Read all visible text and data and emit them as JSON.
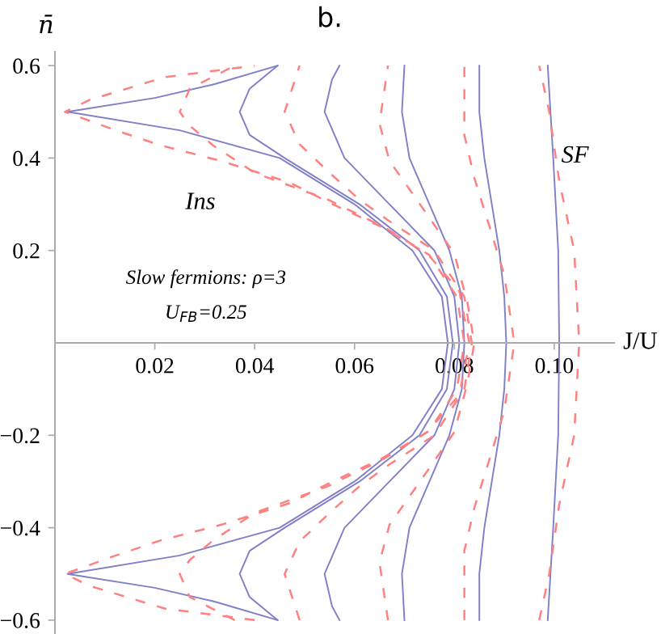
{
  "chart_data": {
    "type": "line",
    "title": "b.",
    "xlabel": "J/U",
    "ylabel": "n̄",
    "xlim": [
      0,
      0.112
    ],
    "ylim": [
      -0.63,
      0.63
    ],
    "xticks": [
      0.02,
      0.04,
      0.06,
      0.08,
      {
        "value": 0.1,
        "label": "0.10"
      }
    ],
    "yticks": [
      {
        "value": -0.6,
        "label": "−0.6"
      },
      {
        "value": -0.4,
        "label": "−0.4"
      },
      {
        "value": -0.2,
        "label": "−0.2"
      },
      0.2,
      0.4,
      0.6
    ],
    "grid": false,
    "legend": false,
    "marker": "none",
    "annotations": [
      "Ins",
      "SF",
      "Slow fermions: ρ=3",
      "U$_{FB}$=0.25"
    ],
    "series": [
      {
        "color": "#8080c8",
        "line_style": "solid",
        "x": [
          0.0446,
          0.032,
          0.02,
          0.0025,
          0.025,
          0.045,
          0.06,
          0.0716,
          0.0775,
          0.0787,
          0.0775,
          0.0716,
          0.06,
          0.045,
          0.025,
          0.0025,
          0.02,
          0.032,
          0.0446
        ],
        "values": [
          -0.6,
          -0.56,
          -0.53,
          -0.5,
          -0.46,
          -0.4,
          -0.3,
          -0.2,
          -0.1,
          0,
          0.1,
          0.2,
          0.3,
          0.4,
          0.46,
          0.5,
          0.53,
          0.56,
          0.6
        ]
      },
      {
        "color": "#8080c8",
        "line_style": "solid",
        "x": [
          0.0446,
          0.039,
          0.037,
          0.039,
          0.046,
          0.061,
          0.073,
          0.0785,
          0.0797,
          0.0785,
          0.073,
          0.061,
          0.046,
          0.039,
          0.037,
          0.039,
          0.0446
        ],
        "values": [
          -0.6,
          -0.55,
          -0.5,
          -0.45,
          -0.4,
          -0.3,
          -0.2,
          -0.1,
          0,
          0.1,
          0.2,
          0.3,
          0.4,
          0.45,
          0.5,
          0.55,
          0.6
        ]
      },
      {
        "color": "#8080c8",
        "line_style": "solid",
        "x": [
          0.057,
          0.0555,
          0.054,
          0.058,
          0.067,
          0.076,
          0.08,
          0.081,
          0.08,
          0.076,
          0.067,
          0.058,
          0.054,
          0.0555,
          0.057
        ],
        "values": [
          -0.6,
          -0.57,
          -0.5,
          -0.4,
          -0.3,
          -0.2,
          -0.1,
          0,
          0.1,
          0.2,
          0.3,
          0.4,
          0.5,
          0.57,
          0.6
        ]
      },
      {
        "color": "#8080c8",
        "line_style": "solid",
        "x": [
          0.07,
          0.0695,
          0.071,
          0.075,
          0.079,
          0.0815,
          0.082,
          0.0815,
          0.079,
          0.075,
          0.071,
          0.0695,
          0.07
        ],
        "values": [
          -0.6,
          -0.5,
          -0.4,
          -0.3,
          -0.2,
          -0.1,
          0,
          0.1,
          0.2,
          0.3,
          0.4,
          0.5,
          0.6
        ]
      },
      {
        "color": "#8080c8",
        "line_style": "solid",
        "x": [
          0.085,
          0.085,
          0.086,
          0.0875,
          0.089,
          0.09,
          0.0904,
          0.09,
          0.089,
          0.0875,
          0.086,
          0.085,
          0.085
        ],
        "values": [
          -0.6,
          -0.5,
          -0.4,
          -0.3,
          -0.2,
          -0.1,
          0,
          0.1,
          0.2,
          0.3,
          0.4,
          0.5,
          0.6
        ]
      },
      {
        "color": "#8080c8",
        "line_style": "solid",
        "x": [
          0.0987,
          0.0998,
          0.1008,
          0.101,
          0.1008,
          0.0998,
          0.0987
        ],
        "values": [
          -0.6,
          -0.4,
          -0.2,
          0,
          0.2,
          0.4,
          0.6
        ]
      },
      {
        "color": "#ff8080",
        "line_style": "dashed",
        "x": [
          0.04,
          0.022,
          0.007,
          0.002,
          0.0114,
          0.021,
          0.0335,
          0.047,
          0.056,
          0.065,
          0.0746,
          0.081,
          0.083,
          0.081,
          0.0746,
          0.065,
          0.056,
          0.047,
          0.0335,
          0.021,
          0.0114,
          0.002,
          0.007,
          0.022,
          0.04
        ],
        "values": [
          -0.6,
          -0.575,
          -0.526,
          -0.5,
          -0.463,
          -0.428,
          -0.393,
          -0.347,
          -0.298,
          -0.253,
          -0.193,
          -0.112,
          0,
          0.112,
          0.193,
          0.253,
          0.298,
          0.347,
          0.393,
          0.428,
          0.463,
          0.5,
          0.526,
          0.575,
          0.6
        ]
      },
      {
        "color": "#ff8080",
        "line_style": "dashed",
        "x": [
          0.036,
          0.027,
          0.025,
          0.027,
          0.0316,
          0.04,
          0.0547,
          0.066,
          0.075,
          0.0805,
          0.082,
          0.0805,
          0.075,
          0.066,
          0.0547,
          0.04,
          0.0316,
          0.027,
          0.025,
          0.027,
          0.036
        ],
        "values": [
          -0.6,
          -0.55,
          -0.5,
          -0.47,
          -0.428,
          -0.368,
          -0.31,
          -0.25,
          -0.19,
          -0.1,
          0,
          0.1,
          0.19,
          0.25,
          0.31,
          0.368,
          0.428,
          0.47,
          0.5,
          0.55,
          0.6
        ]
      },
      {
        "color": "#ff8080",
        "line_style": "dashed",
        "x": [
          0.049,
          0.046,
          0.049,
          0.055,
          0.061,
          0.067,
          0.076,
          0.082,
          0.0835,
          0.082,
          0.076,
          0.067,
          0.061,
          0.055,
          0.049,
          0.046,
          0.049
        ],
        "values": [
          -0.6,
          -0.5,
          -0.43,
          -0.368,
          -0.31,
          -0.263,
          -0.2,
          -0.1,
          0,
          0.1,
          0.2,
          0.263,
          0.31,
          0.368,
          0.43,
          0.5,
          0.6
        ]
      },
      {
        "color": "#ff8080",
        "line_style": "dashed",
        "x": [
          0.0667,
          0.065,
          0.067,
          0.0746,
          0.08,
          0.0826,
          0.084,
          0.0826,
          0.08,
          0.0746,
          0.067,
          0.065,
          0.0667
        ],
        "values": [
          -0.6,
          -0.475,
          -0.394,
          -0.277,
          -0.193,
          -0.088,
          0,
          0.088,
          0.193,
          0.277,
          0.394,
          0.475,
          0.6
        ]
      },
      {
        "color": "#ff8080",
        "line_style": "dashed",
        "x": [
          0.082,
          0.082,
          0.084,
          0.087,
          0.09,
          0.092,
          0.09,
          0.087,
          0.084,
          0.082,
          0.082
        ],
        "values": [
          -0.6,
          -0.45,
          -0.357,
          -0.253,
          -0.147,
          0,
          0.147,
          0.253,
          0.357,
          0.45,
          0.6
        ]
      },
      {
        "color": "#ff8080",
        "line_style": "dashed",
        "x": [
          0.097,
          0.099,
          0.101,
          0.104,
          0.105,
          0.104,
          0.101,
          0.099,
          0.097
        ],
        "values": [
          -0.6,
          -0.5,
          -0.35,
          -0.2,
          0,
          0.2,
          0.35,
          0.5,
          0.6
        ]
      }
    ]
  }
}
